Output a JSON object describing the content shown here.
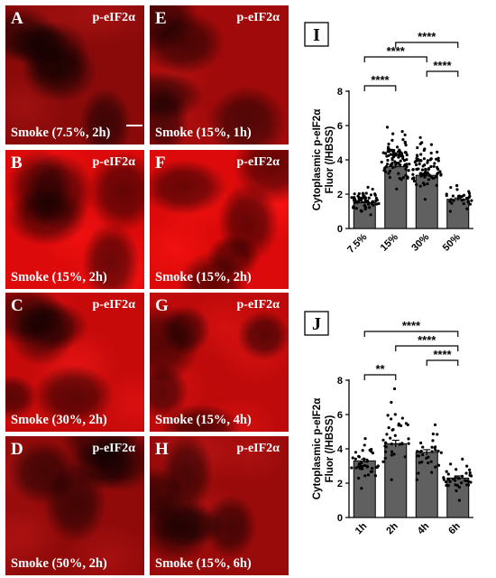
{
  "panels": [
    {
      "letter": "A",
      "stain": "p-eIF2α",
      "condition": "Smoke (7.5%, 2h)",
      "scale_bar": true
    },
    {
      "letter": "E",
      "stain": "p-eIF2α",
      "condition": "Smoke (15%, 1h)"
    },
    {
      "letter": "B",
      "stain": "p-eIF2α",
      "condition": "Smoke (15%, 2h)"
    },
    {
      "letter": "F",
      "stain": "p-eIF2α",
      "condition": "Smoke (15%, 2h)"
    },
    {
      "letter": "C",
      "stain": "p-eIF2α",
      "condition": "Smoke (30%, 2h)"
    },
    {
      "letter": "G",
      "stain": "p-eIF2α",
      "condition": "Smoke (15%, 4h)"
    },
    {
      "letter": "D",
      "stain": "p-eIF2α",
      "condition": "Smoke (50%, 2h)"
    },
    {
      "letter": "H",
      "stain": "p-eIF2α",
      "condition": "Smoke (15%, 6h)"
    }
  ],
  "chart_data": [
    {
      "panel_label": "I",
      "type": "bar",
      "categories": [
        "7.5%",
        "15%",
        "30%",
        "50%"
      ],
      "values": [
        1.5,
        3.6,
        3.1,
        1.7
      ],
      "errors": [
        0.05,
        0.08,
        0.07,
        0.08
      ],
      "ylabel_line1": "Cytoplasmic p-eIF2α",
      "ylabel_line2": "Fluor (/HBSS)",
      "ylim": [
        0,
        8
      ],
      "yticks": [
        0,
        2,
        4,
        6,
        8
      ],
      "points_per_group": [
        60,
        90,
        80,
        30
      ],
      "point_ranges": [
        [
          0.8,
          2.4
        ],
        [
          2.3,
          5.9
        ],
        [
          1.7,
          5.3
        ],
        [
          1.0,
          2.5
        ]
      ],
      "bar_color": "#606060",
      "significance": [
        {
          "from": 0,
          "to": 1,
          "label": "****"
        },
        {
          "from": 2,
          "to": 3,
          "label": "****"
        },
        {
          "from": 0,
          "to": 2,
          "label": "****"
        },
        {
          "from": 1,
          "to": 3,
          "label": "****"
        }
      ]
    },
    {
      "panel_label": "J",
      "type": "bar",
      "categories": [
        "1h",
        "2h",
        "4h",
        "6h"
      ],
      "values": [
        3.3,
        4.3,
        3.8,
        2.3
      ],
      "errors": [
        0.1,
        0.2,
        0.15,
        0.12
      ],
      "ylabel_line1": "Cytoplasmic p-eIF2α",
      "ylabel_line2": "Fluor (/HBSS)",
      "ylim": [
        0,
        8
      ],
      "yticks": [
        0,
        2,
        4,
        6,
        8
      ],
      "points_per_group": [
        40,
        35,
        30,
        35
      ],
      "point_ranges": [
        [
          1.7,
          4.6
        ],
        [
          2.2,
          7.5
        ],
        [
          2.2,
          5.4
        ],
        [
          1.0,
          3.4
        ]
      ],
      "bar_color": "#606060",
      "significance": [
        {
          "from": 0,
          "to": 1,
          "label": "**"
        },
        {
          "from": 2,
          "to": 3,
          "label": "****"
        },
        {
          "from": 1,
          "to": 3,
          "label": "****"
        },
        {
          "from": 0,
          "to": 3,
          "label": "****"
        }
      ]
    }
  ]
}
